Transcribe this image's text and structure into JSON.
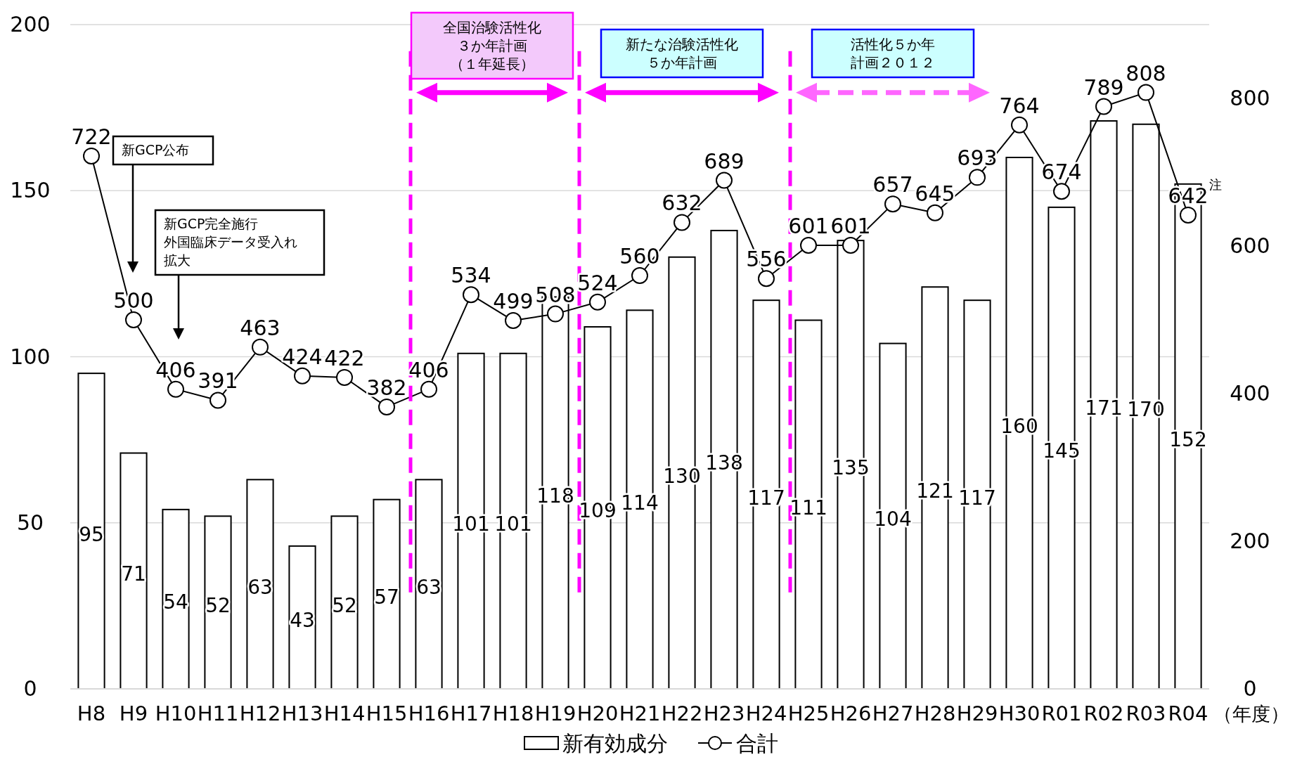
{
  "chart_data": {
    "type": "bar",
    "xlabel": "（年度）",
    "categories": [
      "H8",
      "H9",
      "H10",
      "H11",
      "H12",
      "H13",
      "H14",
      "H15",
      "H16",
      "H17",
      "H18",
      "H19",
      "H20",
      "H21",
      "H22",
      "H23",
      "H24",
      "H25",
      "H26",
      "H27",
      "H28",
      "H29",
      "H30",
      "R01",
      "R02",
      "R03",
      "R04"
    ],
    "series": [
      {
        "name": "新有効成分",
        "color": "#ffffff",
        "values": [
          95,
          71,
          54,
          52,
          63,
          43,
          52,
          57,
          63,
          101,
          101,
          118,
          109,
          114,
          130,
          138,
          117,
          111,
          135,
          104,
          121,
          117,
          160,
          145,
          171,
          170,
          152
        ]
      },
      {
        "name": "合計",
        "type": "line",
        "axis": "y2",
        "color": "#000000",
        "marker": "circle",
        "values": [
          722,
          500,
          406,
          391,
          463,
          424,
          422,
          382,
          406,
          534,
          499,
          508,
          524,
          560,
          632,
          689,
          556,
          601,
          601,
          657,
          645,
          693,
          764,
          674,
          789,
          808,
          642
        ]
      }
    ],
    "ylim": [
      0,
      200
    ],
    "yticks": [
      0,
      50,
      100,
      150,
      200
    ],
    "y2lim": [
      0,
      900
    ],
    "y2ticks": [
      0,
      200,
      400,
      600,
      800
    ],
    "grid": "y",
    "legend": "bottom",
    "data_labels": true,
    "bands": [
      {
        "axis": "x",
        "from": "H16",
        "to": "H19",
        "label": "全国治験活性化３か年計画（１年延長）",
        "color": "#f3c9fb"
      },
      {
        "axis": "x",
        "from": "H20",
        "to": "H24",
        "label": "新たな治験活性化５か年計画",
        "color": "#ccffff"
      },
      {
        "axis": "x",
        "from": "H25",
        "to": "H29",
        "label": "活性化５か年計画２０１２",
        "color": "#ccffff"
      }
    ],
    "annotations": [
      "新GCP公布",
      "新GCP完全施行外国臨床データ受入れ拡大",
      "注"
    ]
  }
}
